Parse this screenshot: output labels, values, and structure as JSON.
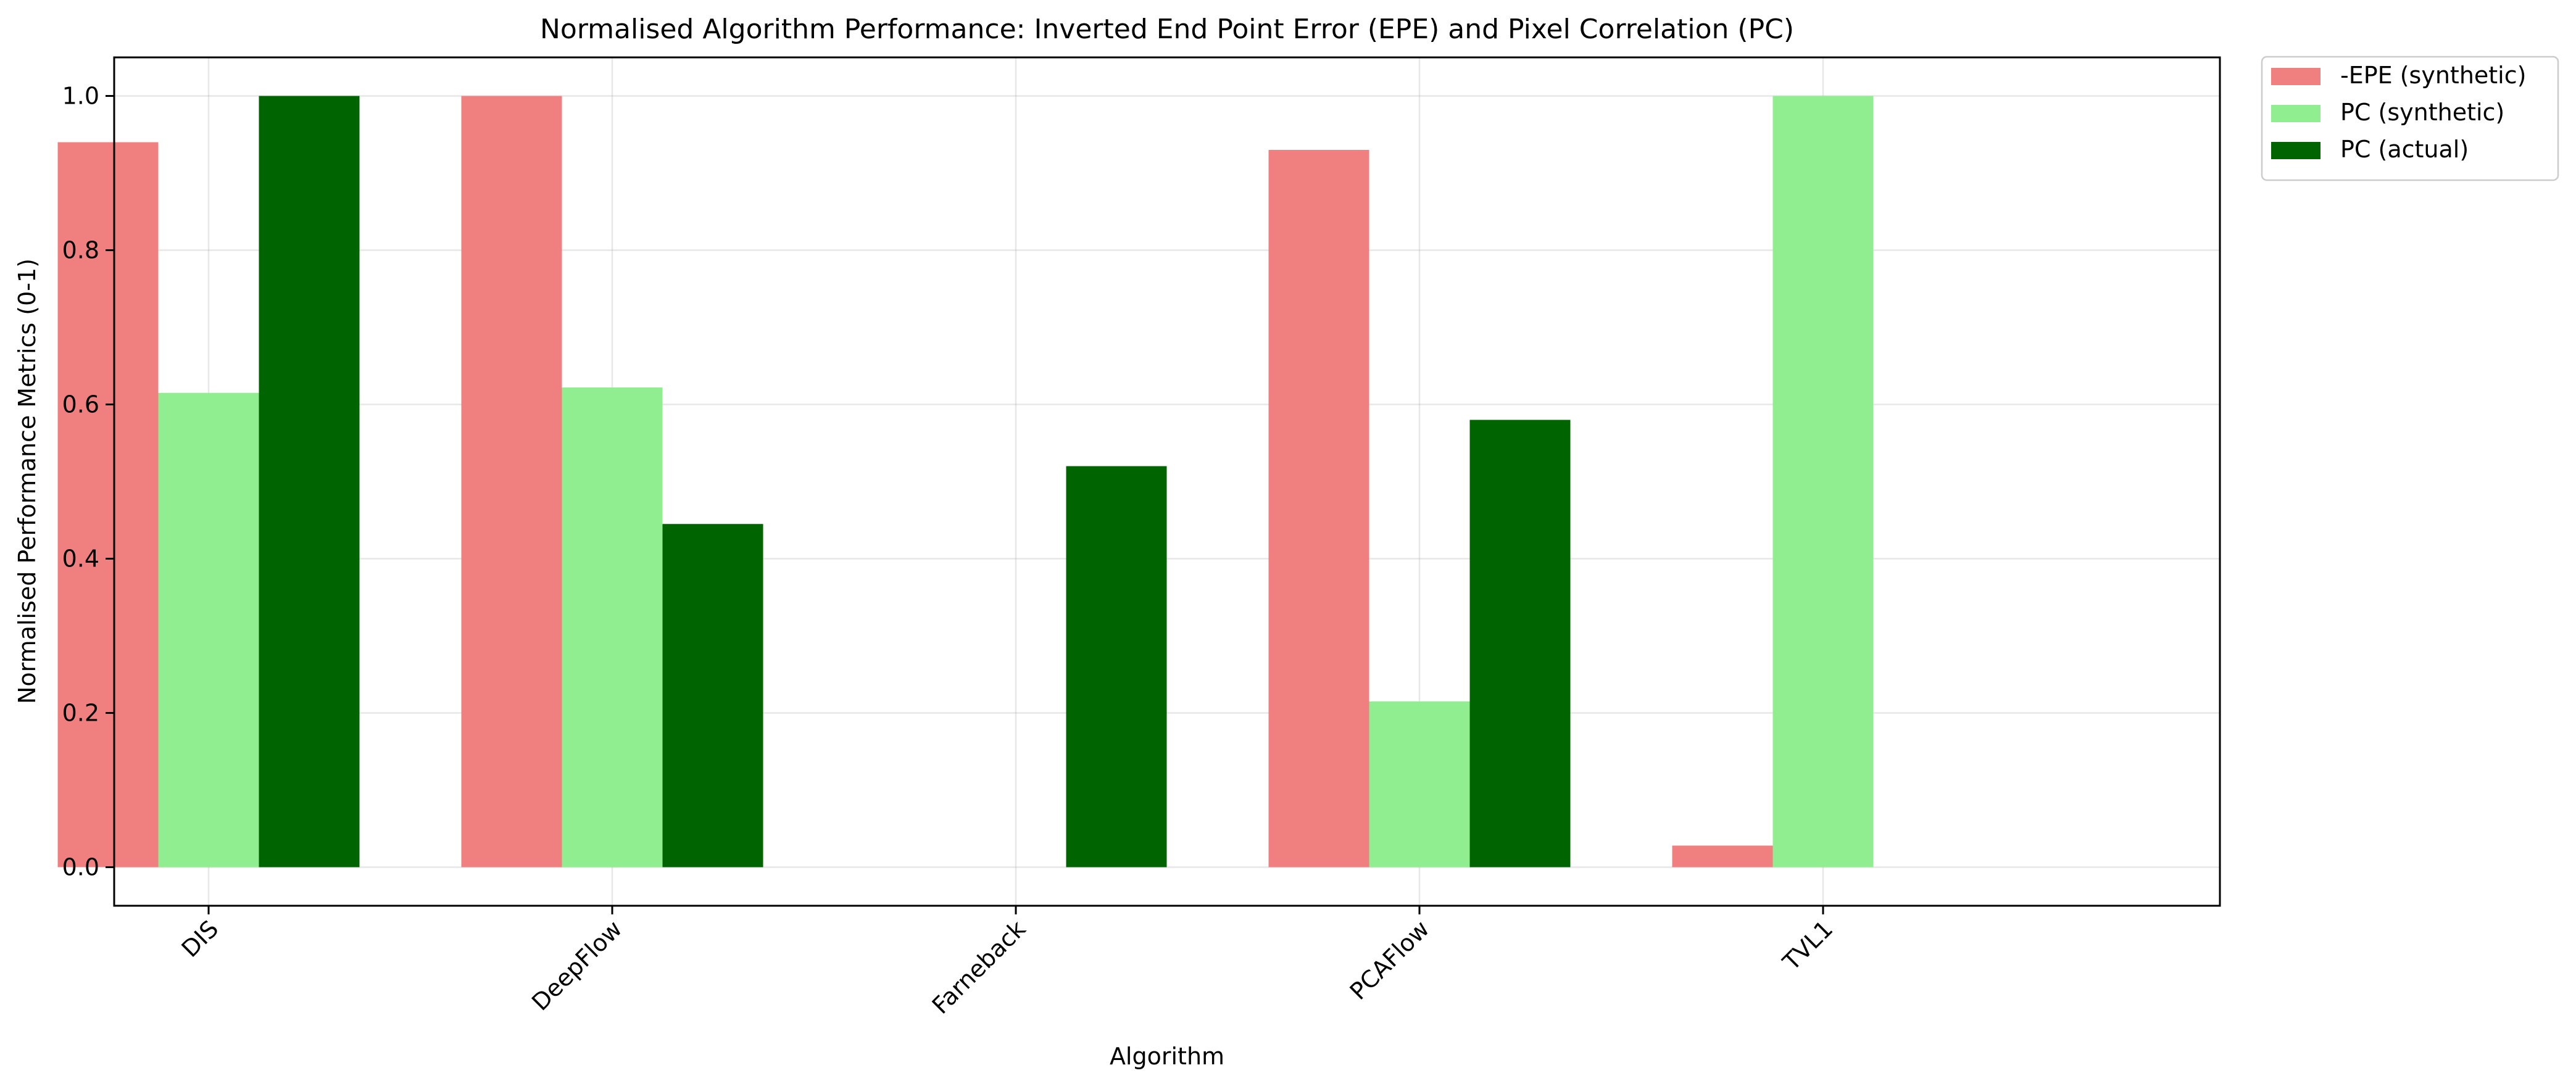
{
  "chart_data": {
    "type": "bar",
    "title": "Normalised Algorithm Performance: Inverted End Point Error (EPE) and Pixel Correlation (PC)",
    "xlabel": "Algorithm",
    "ylabel": "Normalised Performance Metrics (0-1)",
    "categories": [
      "DIS",
      "DeepFlow",
      "Farneback",
      "PCAFlow",
      "TVL1"
    ],
    "series": [
      {
        "name": "-EPE (synthetic)",
        "color": "#f08080",
        "values": [
          0.94,
          1.0,
          0.0,
          0.93,
          0.028
        ]
      },
      {
        "name": "PC (synthetic)",
        "color": "#90ee90",
        "values": [
          0.615,
          0.622,
          0.0,
          0.215,
          1.0
        ]
      },
      {
        "name": "PC (actual)",
        "color": "#006400",
        "values": [
          1.0,
          0.445,
          0.52,
          0.58,
          0.0
        ]
      }
    ],
    "ylim": [
      -0.05,
      1.05
    ],
    "yticks": [
      "0.0",
      "0.2",
      "0.4",
      "0.6",
      "0.8",
      "1.0"
    ],
    "grid": true,
    "legend_position": "outside-top-right"
  }
}
